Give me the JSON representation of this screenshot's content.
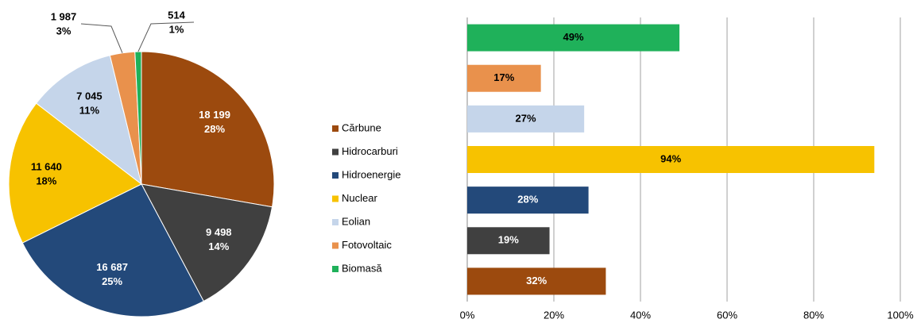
{
  "chart_data": [
    {
      "type": "pie",
      "categories": [
        "Cărbune",
        "Hidrocarburi",
        "Hidroenergie",
        "Nuclear",
        "Eolian",
        "Fotovoltaic",
        "Biomasă"
      ],
      "values": [
        18199,
        9498,
        16687,
        11640,
        7045,
        1987,
        514
      ],
      "value_labels": [
        "18 199",
        "9 498",
        "16 687",
        "11 640",
        "7 045",
        "1 987",
        "514"
      ],
      "percent_labels": [
        "28%",
        "14%",
        "25%",
        "18%",
        "11%",
        "3%",
        "1%"
      ],
      "colors": [
        "#9c4a0e",
        "#404040",
        "#23497a",
        "#f7c200",
        "#c5d5ea",
        "#e9914c",
        "#1fb15a"
      ],
      "legend": true
    },
    {
      "type": "barh",
      "values": [
        32,
        19,
        28,
        94,
        27,
        17,
        49
      ],
      "value_labels": [
        "32%",
        "19%",
        "28%",
        "94%",
        "27%",
        "17%",
        "49%"
      ],
      "colors": [
        "#9c4a0e",
        "#404040",
        "#23497a",
        "#f7c200",
        "#c5d5ea",
        "#e9914c",
        "#1fb15a"
      ],
      "xlim": [
        0,
        100
      ],
      "xticks": [
        {
          "value": 0,
          "label": "0%"
        },
        {
          "value": 20,
          "label": "20%"
        },
        {
          "value": 40,
          "label": "40%"
        },
        {
          "value": 60,
          "label": "60%"
        },
        {
          "value": 80,
          "label": "80%"
        },
        {
          "value": 100,
          "label": "100%"
        }
      ],
      "grid": true
    }
  ]
}
